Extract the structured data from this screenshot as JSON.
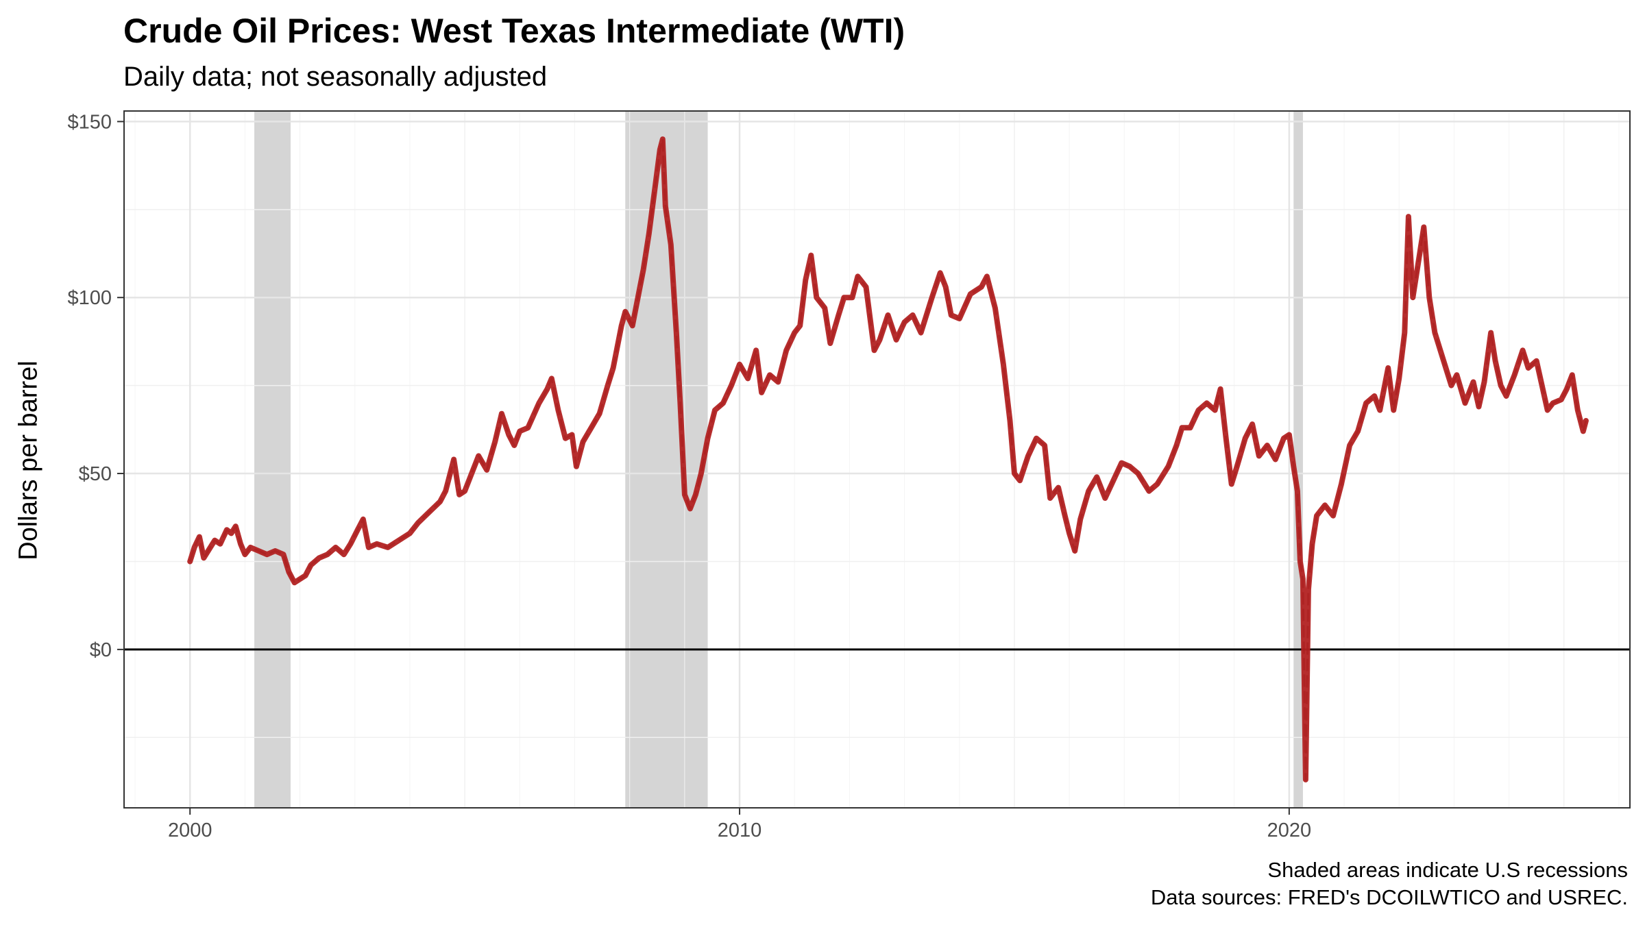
{
  "chart_data": {
    "type": "line",
    "title": "Crude Oil Prices: West Texas Intermediate (WTI)",
    "subtitle": "Daily data; not seasonally adjusted",
    "xlabel": "",
    "ylabel": "Dollars per barrel",
    "xlim": [
      1998.8,
      2026.2
    ],
    "ylim": [
      -45,
      153
    ],
    "x_ticks": [
      2000,
      2010,
      2020
    ],
    "x_tick_labels": [
      "2000",
      "2010",
      "2020"
    ],
    "y_ticks": [
      0,
      50,
      100,
      150
    ],
    "y_tick_labels": [
      "$0",
      "$50",
      "$100",
      "$150"
    ],
    "grid": true,
    "zero_line": true,
    "line_color": "#b22222",
    "recession_color": "#d3d3d3",
    "recessions": [
      [
        2001.17,
        2001.83
      ],
      [
        2007.92,
        2009.42
      ],
      [
        2020.08,
        2020.25
      ]
    ],
    "series": [
      {
        "values": [
          [
            2000.0,
            25
          ],
          [
            2000.08,
            29
          ],
          [
            2000.17,
            32
          ],
          [
            2000.25,
            26
          ],
          [
            2000.33,
            28
          ],
          [
            2000.45,
            31
          ],
          [
            2000.55,
            30
          ],
          [
            2000.67,
            34
          ],
          [
            2000.75,
            33
          ],
          [
            2000.83,
            35
          ],
          [
            2000.92,
            30
          ],
          [
            2001.0,
            27
          ],
          [
            2001.1,
            29
          ],
          [
            2001.25,
            28
          ],
          [
            2001.4,
            27
          ],
          [
            2001.55,
            28
          ],
          [
            2001.7,
            27
          ],
          [
            2001.8,
            22
          ],
          [
            2001.9,
            19
          ],
          [
            2002.0,
            20
          ],
          [
            2002.1,
            21
          ],
          [
            2002.2,
            24
          ],
          [
            2002.35,
            26
          ],
          [
            2002.5,
            27
          ],
          [
            2002.65,
            29
          ],
          [
            2002.8,
            27
          ],
          [
            2002.92,
            30
          ],
          [
            2003.05,
            34
          ],
          [
            2003.15,
            37
          ],
          [
            2003.25,
            29
          ],
          [
            2003.4,
            30
          ],
          [
            2003.6,
            29
          ],
          [
            2003.8,
            31
          ],
          [
            2004.0,
            33
          ],
          [
            2004.15,
            36
          ],
          [
            2004.35,
            39
          ],
          [
            2004.55,
            42
          ],
          [
            2004.65,
            45
          ],
          [
            2004.8,
            54
          ],
          [
            2004.9,
            44
          ],
          [
            2005.0,
            45
          ],
          [
            2005.1,
            49
          ],
          [
            2005.25,
            55
          ],
          [
            2005.4,
            51
          ],
          [
            2005.55,
            59
          ],
          [
            2005.67,
            67
          ],
          [
            2005.8,
            61
          ],
          [
            2005.9,
            58
          ],
          [
            2006.0,
            62
          ],
          [
            2006.15,
            63
          ],
          [
            2006.35,
            70
          ],
          [
            2006.5,
            74
          ],
          [
            2006.58,
            77
          ],
          [
            2006.7,
            68
          ],
          [
            2006.83,
            60
          ],
          [
            2006.95,
            61
          ],
          [
            2007.03,
            52
          ],
          [
            2007.15,
            59
          ],
          [
            2007.3,
            63
          ],
          [
            2007.45,
            67
          ],
          [
            2007.6,
            75
          ],
          [
            2007.7,
            80
          ],
          [
            2007.85,
            92
          ],
          [
            2007.92,
            96
          ],
          [
            2008.05,
            92
          ],
          [
            2008.15,
            100
          ],
          [
            2008.25,
            108
          ],
          [
            2008.35,
            118
          ],
          [
            2008.45,
            130
          ],
          [
            2008.55,
            142
          ],
          [
            2008.6,
            145
          ],
          [
            2008.65,
            126
          ],
          [
            2008.75,
            115
          ],
          [
            2008.85,
            90
          ],
          [
            2008.92,
            70
          ],
          [
            2009.0,
            44
          ],
          [
            2009.1,
            40
          ],
          [
            2009.2,
            44
          ],
          [
            2009.3,
            50
          ],
          [
            2009.42,
            60
          ],
          [
            2009.55,
            68
          ],
          [
            2009.7,
            70
          ],
          [
            2009.85,
            75
          ],
          [
            2010.0,
            81
          ],
          [
            2010.15,
            77
          ],
          [
            2010.3,
            85
          ],
          [
            2010.4,
            73
          ],
          [
            2010.55,
            78
          ],
          [
            2010.7,
            76
          ],
          [
            2010.85,
            85
          ],
          [
            2011.0,
            90
          ],
          [
            2011.1,
            92
          ],
          [
            2011.2,
            105
          ],
          [
            2011.3,
            112
          ],
          [
            2011.4,
            100
          ],
          [
            2011.55,
            97
          ],
          [
            2011.65,
            87
          ],
          [
            2011.8,
            95
          ],
          [
            2011.9,
            100
          ],
          [
            2012.05,
            100
          ],
          [
            2012.15,
            106
          ],
          [
            2012.3,
            103
          ],
          [
            2012.45,
            85
          ],
          [
            2012.55,
            88
          ],
          [
            2012.7,
            95
          ],
          [
            2012.85,
            88
          ],
          [
            2013.0,
            93
          ],
          [
            2013.15,
            95
          ],
          [
            2013.3,
            90
          ],
          [
            2013.5,
            100
          ],
          [
            2013.65,
            107
          ],
          [
            2013.75,
            103
          ],
          [
            2013.85,
            95
          ],
          [
            2014.0,
            94
          ],
          [
            2014.2,
            101
          ],
          [
            2014.4,
            103
          ],
          [
            2014.5,
            106
          ],
          [
            2014.65,
            97
          ],
          [
            2014.8,
            81
          ],
          [
            2014.92,
            65
          ],
          [
            2015.0,
            50
          ],
          [
            2015.1,
            48
          ],
          [
            2015.25,
            55
          ],
          [
            2015.4,
            60
          ],
          [
            2015.55,
            58
          ],
          [
            2015.65,
            43
          ],
          [
            2015.8,
            46
          ],
          [
            2015.92,
            38
          ],
          [
            2016.0,
            33
          ],
          [
            2016.1,
            28
          ],
          [
            2016.2,
            37
          ],
          [
            2016.35,
            45
          ],
          [
            2016.5,
            49
          ],
          [
            2016.65,
            43
          ],
          [
            2016.8,
            48
          ],
          [
            2016.95,
            53
          ],
          [
            2017.1,
            52
          ],
          [
            2017.25,
            50
          ],
          [
            2017.45,
            45
          ],
          [
            2017.6,
            47
          ],
          [
            2017.8,
            52
          ],
          [
            2017.95,
            58
          ],
          [
            2018.05,
            63
          ],
          [
            2018.2,
            63
          ],
          [
            2018.35,
            68
          ],
          [
            2018.5,
            70
          ],
          [
            2018.65,
            68
          ],
          [
            2018.75,
            74
          ],
          [
            2018.85,
            60
          ],
          [
            2018.95,
            47
          ],
          [
            2019.05,
            52
          ],
          [
            2019.2,
            60
          ],
          [
            2019.33,
            64
          ],
          [
            2019.45,
            55
          ],
          [
            2019.6,
            58
          ],
          [
            2019.75,
            54
          ],
          [
            2019.9,
            60
          ],
          [
            2020.0,
            61
          ],
          [
            2020.08,
            52
          ],
          [
            2020.15,
            45
          ],
          [
            2020.2,
            25
          ],
          [
            2020.25,
            20
          ],
          [
            2020.3,
            -37
          ],
          [
            2020.35,
            17
          ],
          [
            2020.42,
            30
          ],
          [
            2020.5,
            38
          ],
          [
            2020.65,
            41
          ],
          [
            2020.8,
            38
          ],
          [
            2020.95,
            47
          ],
          [
            2021.1,
            58
          ],
          [
            2021.25,
            62
          ],
          [
            2021.4,
            70
          ],
          [
            2021.55,
            72
          ],
          [
            2021.65,
            68
          ],
          [
            2021.8,
            80
          ],
          [
            2021.9,
            68
          ],
          [
            2022.0,
            77
          ],
          [
            2022.1,
            90
          ],
          [
            2022.17,
            123
          ],
          [
            2022.25,
            100
          ],
          [
            2022.35,
            110
          ],
          [
            2022.45,
            120
          ],
          [
            2022.55,
            100
          ],
          [
            2022.65,
            90
          ],
          [
            2022.75,
            85
          ],
          [
            2022.85,
            80
          ],
          [
            2022.95,
            75
          ],
          [
            2023.05,
            78
          ],
          [
            2023.2,
            70
          ],
          [
            2023.35,
            76
          ],
          [
            2023.45,
            69
          ],
          [
            2023.55,
            76
          ],
          [
            2023.67,
            90
          ],
          [
            2023.75,
            82
          ],
          [
            2023.85,
            75
          ],
          [
            2023.95,
            72
          ],
          [
            2024.1,
            78
          ],
          [
            2024.25,
            85
          ],
          [
            2024.35,
            80
          ],
          [
            2024.5,
            82
          ],
          [
            2024.6,
            75
          ],
          [
            2024.7,
            68
          ],
          [
            2024.8,
            70
          ],
          [
            2024.95,
            71
          ],
          [
            2025.05,
            74
          ],
          [
            2025.15,
            78
          ],
          [
            2025.25,
            68
          ],
          [
            2025.35,
            62
          ],
          [
            2025.4,
            65
          ]
        ]
      }
    ]
  },
  "caption": {
    "line1": "Shaded areas indicate U.S recessions",
    "line2": "Data sources: FRED's DCOILWTICO and USREC."
  }
}
